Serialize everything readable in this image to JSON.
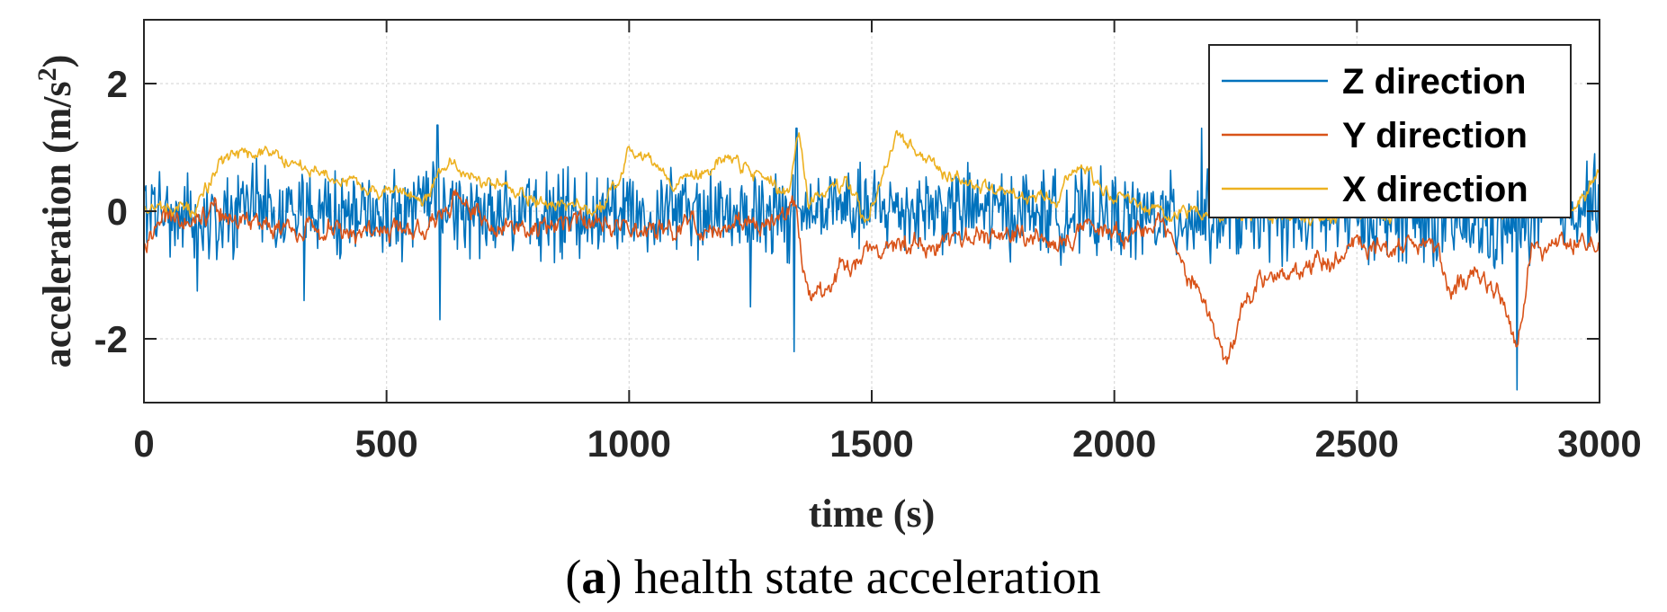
{
  "chart_data": {
    "type": "line",
    "title": "",
    "xlabel": "time (s)",
    "ylabel_main": "acceleration (m/s",
    "ylabel_sup": "2",
    "ylabel_close": ")",
    "xlim": [
      0,
      3000
    ],
    "ylim": [
      -3,
      3
    ],
    "xticks": [
      0,
      500,
      1000,
      1500,
      2000,
      2500,
      3000
    ],
    "xtick_labels": [
      "0",
      "500",
      "1000",
      "1500",
      "2000",
      "2500",
      "3000"
    ],
    "yticks": [
      -2,
      0,
      2
    ],
    "ytick_labels": [
      "-2",
      "0",
      "2"
    ],
    "grid": true,
    "legend_position": "top-right",
    "series": [
      {
        "name": "Z direction",
        "color": "#0072BD",
        "style": "noisy",
        "base": [
          [
            0,
            0.0
          ],
          [
            100,
            -0.1
          ],
          [
            200,
            0.05
          ],
          [
            400,
            -0.1
          ],
          [
            600,
            0.05
          ],
          [
            800,
            -0.1
          ],
          [
            1000,
            0.0
          ],
          [
            1200,
            0.0
          ],
          [
            1340,
            -0.1
          ],
          [
            1400,
            0.0
          ],
          [
            1600,
            0.05
          ],
          [
            1800,
            0.0
          ],
          [
            2000,
            -0.1
          ],
          [
            2200,
            -0.1
          ],
          [
            2400,
            -0.1
          ],
          [
            2600,
            -0.1
          ],
          [
            2800,
            -0.3
          ],
          [
            3000,
            0.2
          ]
        ],
        "noise": 0.55,
        "spikes": [
          [
            605,
            1.35
          ],
          [
            610,
            -1.7
          ],
          [
            1340,
            -2.2
          ],
          [
            1345,
            1.3
          ],
          [
            2180,
            1.3
          ],
          [
            2830,
            -2.8
          ],
          [
            2990,
            0.9
          ],
          [
            110,
            -1.25
          ],
          [
            330,
            -1.4
          ],
          [
            1250,
            -1.5
          ]
        ]
      },
      {
        "name": "Y direction",
        "color": "#D95319",
        "style": "smooth",
        "base": [
          [
            0,
            -0.45
          ],
          [
            50,
            -0.15
          ],
          [
            150,
            -0.05
          ],
          [
            300,
            -0.3
          ],
          [
            600,
            -0.3
          ],
          [
            650,
            0.3
          ],
          [
            700,
            -0.2
          ],
          [
            1000,
            -0.25
          ],
          [
            1300,
            -0.2
          ],
          [
            1340,
            0.1
          ],
          [
            1360,
            -0.9
          ],
          [
            1380,
            -1.4
          ],
          [
            1450,
            -0.8
          ],
          [
            1500,
            -0.55
          ],
          [
            1550,
            -0.5
          ],
          [
            1700,
            -0.45
          ],
          [
            2000,
            -0.3
          ],
          [
            2100,
            -0.3
          ],
          [
            2150,
            -0.9
          ],
          [
            2200,
            -1.8
          ],
          [
            2230,
            -2.5
          ],
          [
            2260,
            -1.6
          ],
          [
            2300,
            -1.0
          ],
          [
            2400,
            -0.9
          ],
          [
            2500,
            -0.6
          ],
          [
            2600,
            -0.5
          ],
          [
            2650,
            -0.4
          ],
          [
            2700,
            -1.3
          ],
          [
            2750,
            -1.0
          ],
          [
            2800,
            -1.4
          ],
          [
            2830,
            -2.2
          ],
          [
            2860,
            -0.6
          ],
          [
            2950,
            -0.5
          ],
          [
            3000,
            -0.6
          ]
        ],
        "noise": 0.18,
        "spikes": []
      },
      {
        "name": "X direction",
        "color": "#EDB120",
        "style": "smooth",
        "base": [
          [
            0,
            0.1
          ],
          [
            100,
            0.0
          ],
          [
            160,
            0.8
          ],
          [
            250,
            0.95
          ],
          [
            350,
            0.6
          ],
          [
            500,
            0.3
          ],
          [
            580,
            0.2
          ],
          [
            620,
            0.8
          ],
          [
            700,
            0.45
          ],
          [
            850,
            0.1
          ],
          [
            950,
            0.0
          ],
          [
            1000,
            1.0
          ],
          [
            1100,
            0.45
          ],
          [
            1200,
            0.8
          ],
          [
            1300,
            0.45
          ],
          [
            1330,
            0.2
          ],
          [
            1350,
            1.2
          ],
          [
            1370,
            0.2
          ],
          [
            1450,
            0.4
          ],
          [
            1490,
            -0.2
          ],
          [
            1550,
            1.15
          ],
          [
            1650,
            0.6
          ],
          [
            1800,
            0.2
          ],
          [
            1880,
            0.25
          ],
          [
            1930,
            0.75
          ],
          [
            2000,
            0.25
          ],
          [
            2100,
            0.0
          ],
          [
            2200,
            0.0
          ],
          [
            2400,
            -0.1
          ],
          [
            2600,
            0.0
          ],
          [
            2800,
            0.0
          ],
          [
            2950,
            0.1
          ],
          [
            3000,
            0.6
          ]
        ],
        "noise": 0.12,
        "spikes": []
      }
    ]
  },
  "caption": {
    "prefix_open": "(",
    "letter": "a",
    "prefix_close": ")",
    "text": " health state acceleration"
  }
}
